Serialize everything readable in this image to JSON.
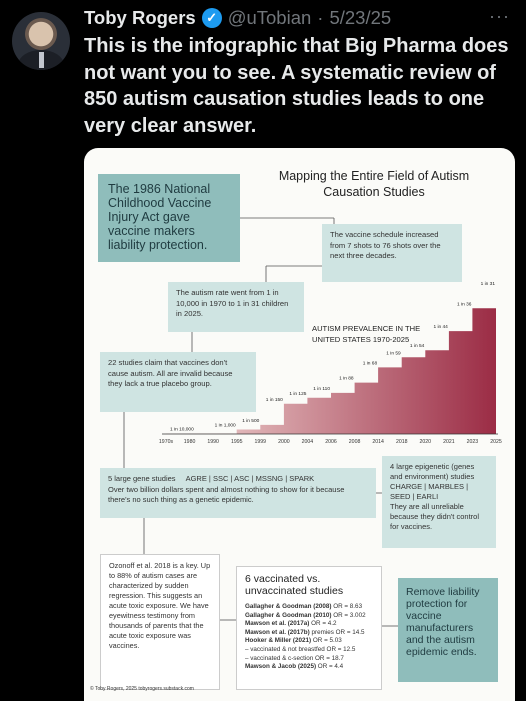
{
  "author": {
    "name": "Toby Rogers",
    "handle": "@uTobian",
    "separator": "·",
    "date": "5/23/25",
    "verified_glyph": "✓"
  },
  "more_glyph": "···",
  "tweet_text": "This is the infographic that Big Pharma does not want you to see. A systematic review of 850 autism causation studies leads to one very clear answer.",
  "infographic": {
    "title": "Mapping the Entire Field of Autism Causation Studies",
    "box_1986": "The 1986 National Childhood Vaccine Injury Act gave vaccine makers liability protection.",
    "box_schedule": "The vaccine schedule increased from 7 shots to 76 shots over the next three decades.",
    "box_rate": "The autism rate went from 1 in 10,000 in 1970 to 1 in 31 children in 2025.",
    "box_22": "22 studies claim that vaccines don't cause autism. All are invalid because they lack a true placebo group.",
    "box_5": {
      "line1_label": "5 large gene studies",
      "line1_list": "AGRE | SSC | ASC | MSSNG | SPARK",
      "rest": "Over two billion dollars spent and almost nothing to show for it because there's no such thing as a genetic epidemic."
    },
    "box_4": {
      "lead": "4 large epigenetic (genes and environment) studies",
      "list": "CHARGE | MARBLES | SEED | EARLI",
      "rest": "They are all unreliable because they didn't control for vaccines."
    },
    "box_ozonoff": "Ozonoff et al. 2018 is a key. Up to 88% of autism cases are characterized by sudden regression. This suggests an acute toxic exposure. We have eyewitness testimony from thousands of parents that the acute toxic exposure was vaccines.",
    "box_6": {
      "title": "6 vaccinated vs. unvaccinated studies",
      "rows": [
        {
          "study": "Gallagher & Goodman (2008)",
          "value": "OR = 8.63"
        },
        {
          "study": "Gallagher & Goodman (2010)",
          "value": "OR = 3.002"
        },
        {
          "study": "Mawson et al. (2017a)",
          "value": "OR = 4.2"
        },
        {
          "study": "Mawson et al. (2017b)",
          "value": "premies OR = 14.5"
        },
        {
          "study": "Hooker & Miller (2021)",
          "value": "OR = 5.03"
        },
        {
          "study": "",
          "value": "– vaccinated & not breastfed OR = 12.5"
        },
        {
          "study": "",
          "value": "– vaccinated & c-section OR = 18.7"
        },
        {
          "study": "Mawson & Jacob (2025)",
          "value": "OR = 4.4"
        }
      ]
    },
    "box_remove": "Remove liability protection for vaccine manufacturers and the autism epidemic ends.",
    "footer": "© Toby Rogers, 2025   tobyrogers.substack.com"
  },
  "chart_data": {
    "type": "area",
    "title": "AUTISM PREVALENCE IN THE UNITED STATES 1970-2025",
    "x_tick_labels": [
      "1970s",
      "1980",
      "1990",
      "1995",
      "1999",
      "2000",
      "2004",
      "2006",
      "2008",
      "2014",
      "2018",
      "2020",
      "2021",
      "2023",
      "2025"
    ],
    "point_labels": [
      "1 in 10,000",
      "1 in 1,000",
      "1 in 500",
      "1 in 150",
      "1 in 125",
      "1 in 110",
      "1 in 88",
      "1 in 68",
      "1 in 59",
      "1 in 54",
      "1 in 44",
      "1 in 36",
      "1 in 31"
    ],
    "point_x_index": [
      0,
      3,
      4,
      5,
      6,
      7,
      8,
      9,
      10,
      11,
      12,
      13,
      14
    ],
    "prevalence_per_10000": [
      1,
      10,
      20,
      66.7,
      80,
      90.9,
      113.6,
      147.1,
      169.5,
      185.2,
      227.3,
      277.8,
      322.6
    ],
    "colors": {
      "fill_start": "#f4dcd8",
      "fill_end": "#9b2c45"
    }
  },
  "colors": {
    "teal": "#8fbdbb",
    "teal_light": "#cfe4e2",
    "verified": "#1d9bf0"
  }
}
